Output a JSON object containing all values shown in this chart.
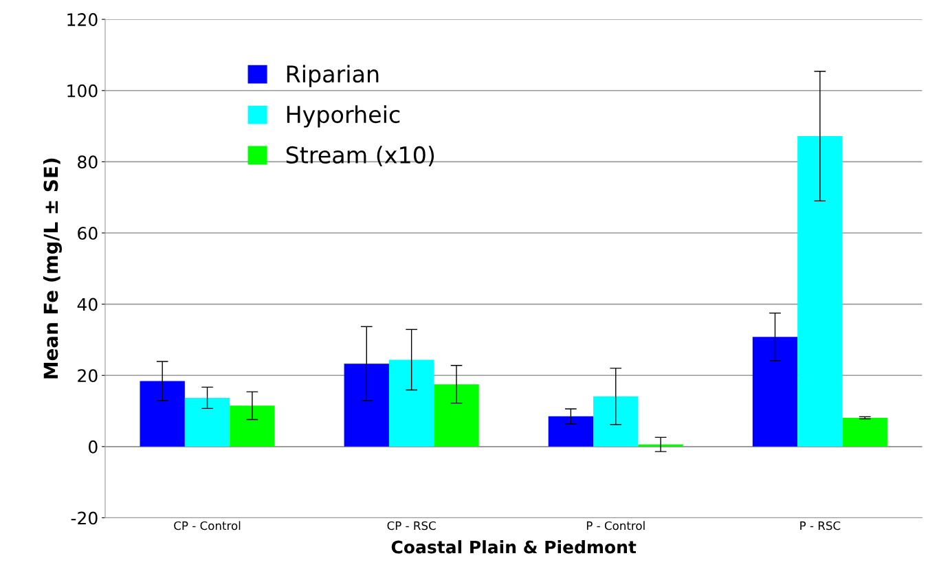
{
  "chart_data": {
    "type": "bar",
    "xlabel": "Coastal Plain & Piedmont",
    "ylabel": "Mean Fe (mg/L ± SE)",
    "categories": [
      "CP - Control",
      "CP - RSC",
      "P - Control",
      "P - RSC"
    ],
    "series": [
      {
        "name": "Riparian",
        "color": "#0000ff",
        "values": [
          18.4,
          23.3,
          8.5,
          30.8
        ],
        "errors": [
          5.5,
          10.4,
          2.1,
          6.7
        ]
      },
      {
        "name": "Hyporheic",
        "color": "#00ffff",
        "values": [
          13.7,
          24.4,
          14.1,
          87.2
        ],
        "errors": [
          3.0,
          8.5,
          7.9,
          18.2
        ]
      },
      {
        "name": "Stream (x10)",
        "color": "#00ff00",
        "values": [
          11.5,
          17.5,
          0.6,
          8.1
        ],
        "errors": [
          3.9,
          5.3,
          2.0,
          0.3
        ]
      }
    ],
    "ylim": [
      -20,
      120
    ],
    "yticks": [
      -20,
      0,
      20,
      40,
      60,
      80,
      100,
      120
    ],
    "grid": "y",
    "legend": "top left"
  }
}
